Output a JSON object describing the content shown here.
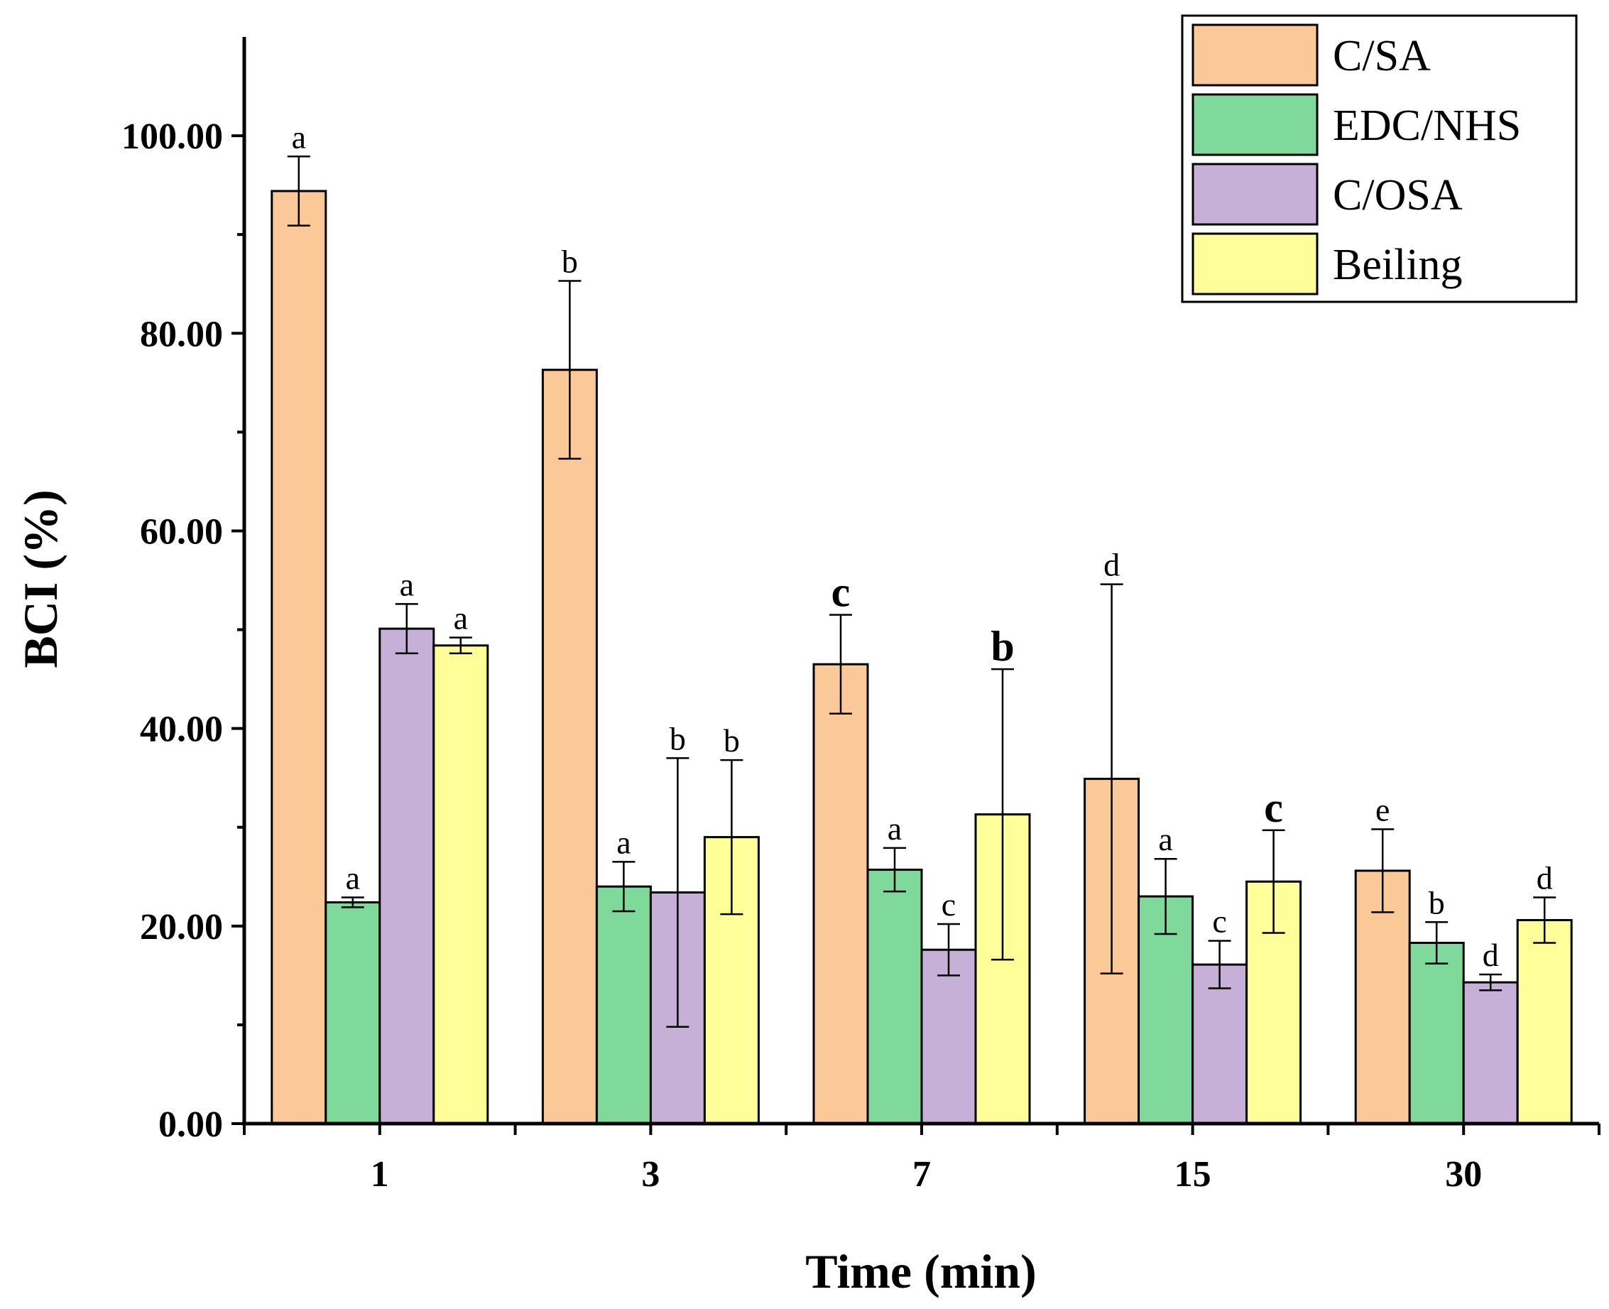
{
  "chart_data": {
    "type": "bar",
    "title": "",
    "xlabel": "Time (min)",
    "ylabel": "BCI (%)",
    "ylim": [
      0,
      110
    ],
    "yticks": [
      0,
      20,
      40,
      60,
      80,
      100
    ],
    "ytick_labels": [
      "0.00",
      "20.00",
      "40.00",
      "60.00",
      "80.00",
      "100.00"
    ],
    "categories": [
      "1",
      "3",
      "7",
      "15",
      "30"
    ],
    "legend_position": "top-right",
    "series": [
      {
        "name": "C/SA",
        "color": "#fbc897",
        "values": [
          94.4,
          76.3,
          46.5,
          34.9,
          25.6
        ],
        "errors": [
          3.5,
          9.0,
          5.0,
          19.7,
          4.2
        ],
        "labels": [
          "a",
          "b",
          "c",
          "d",
          "e"
        ],
        "label_emphasis": [
          false,
          false,
          true,
          false,
          false
        ]
      },
      {
        "name": "EDC/NHS",
        "color": "#7fd99a",
        "values": [
          22.4,
          24.0,
          25.7,
          23.0,
          18.3
        ],
        "errors": [
          0.5,
          2.5,
          2.2,
          3.8,
          2.1
        ],
        "labels": [
          "a",
          "a",
          "a",
          "a",
          "b"
        ],
        "label_emphasis": [
          false,
          false,
          false,
          false,
          false
        ]
      },
      {
        "name": "C/OSA",
        "color": "#c7b0d8",
        "values": [
          50.1,
          23.4,
          17.6,
          16.1,
          14.3
        ],
        "errors": [
          2.5,
          13.6,
          2.6,
          2.4,
          0.8
        ],
        "labels": [
          "a",
          "b",
          "c",
          "c",
          "d"
        ],
        "label_emphasis": [
          false,
          false,
          false,
          false,
          false
        ]
      },
      {
        "name": "Beiling",
        "color": "#ffff99",
        "values": [
          48.4,
          29.0,
          31.3,
          24.5,
          20.6
        ],
        "errors": [
          0.8,
          7.8,
          14.7,
          5.2,
          2.3
        ],
        "labels": [
          "a",
          "b",
          "b",
          "c",
          "d"
        ],
        "label_emphasis": [
          false,
          false,
          true,
          true,
          false
        ]
      }
    ]
  }
}
